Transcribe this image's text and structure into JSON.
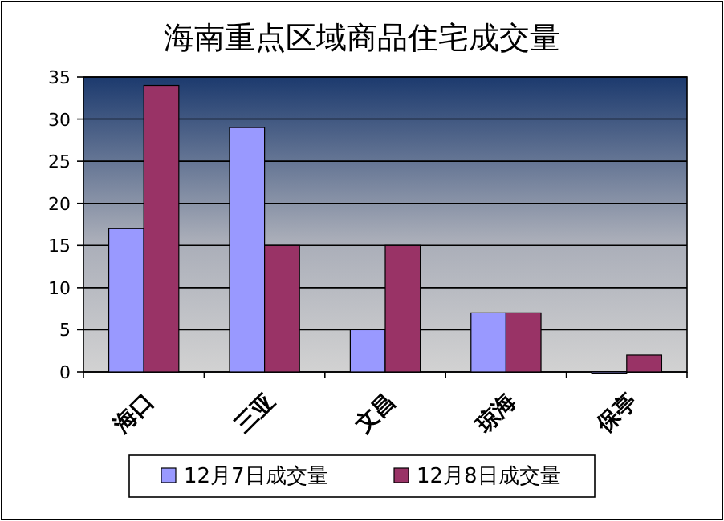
{
  "chart_data": {
    "type": "bar",
    "title": "海南重点区域商品住宅成交量",
    "categories": [
      "海口",
      "三亚",
      "文昌",
      "琼海",
      "保亭"
    ],
    "series": [
      {
        "name": "12月7日成交量",
        "color": "#9999ff",
        "values": [
          17,
          29,
          5,
          7,
          0
        ]
      },
      {
        "name": "12月8日成交量",
        "color": "#993366",
        "values": [
          34,
          15,
          15,
          7,
          2
        ]
      }
    ],
    "ylim": [
      0,
      35
    ],
    "yticks": [
      0,
      5,
      10,
      15,
      20,
      25,
      30,
      35
    ],
    "grid": "y",
    "legend": "bottom"
  }
}
